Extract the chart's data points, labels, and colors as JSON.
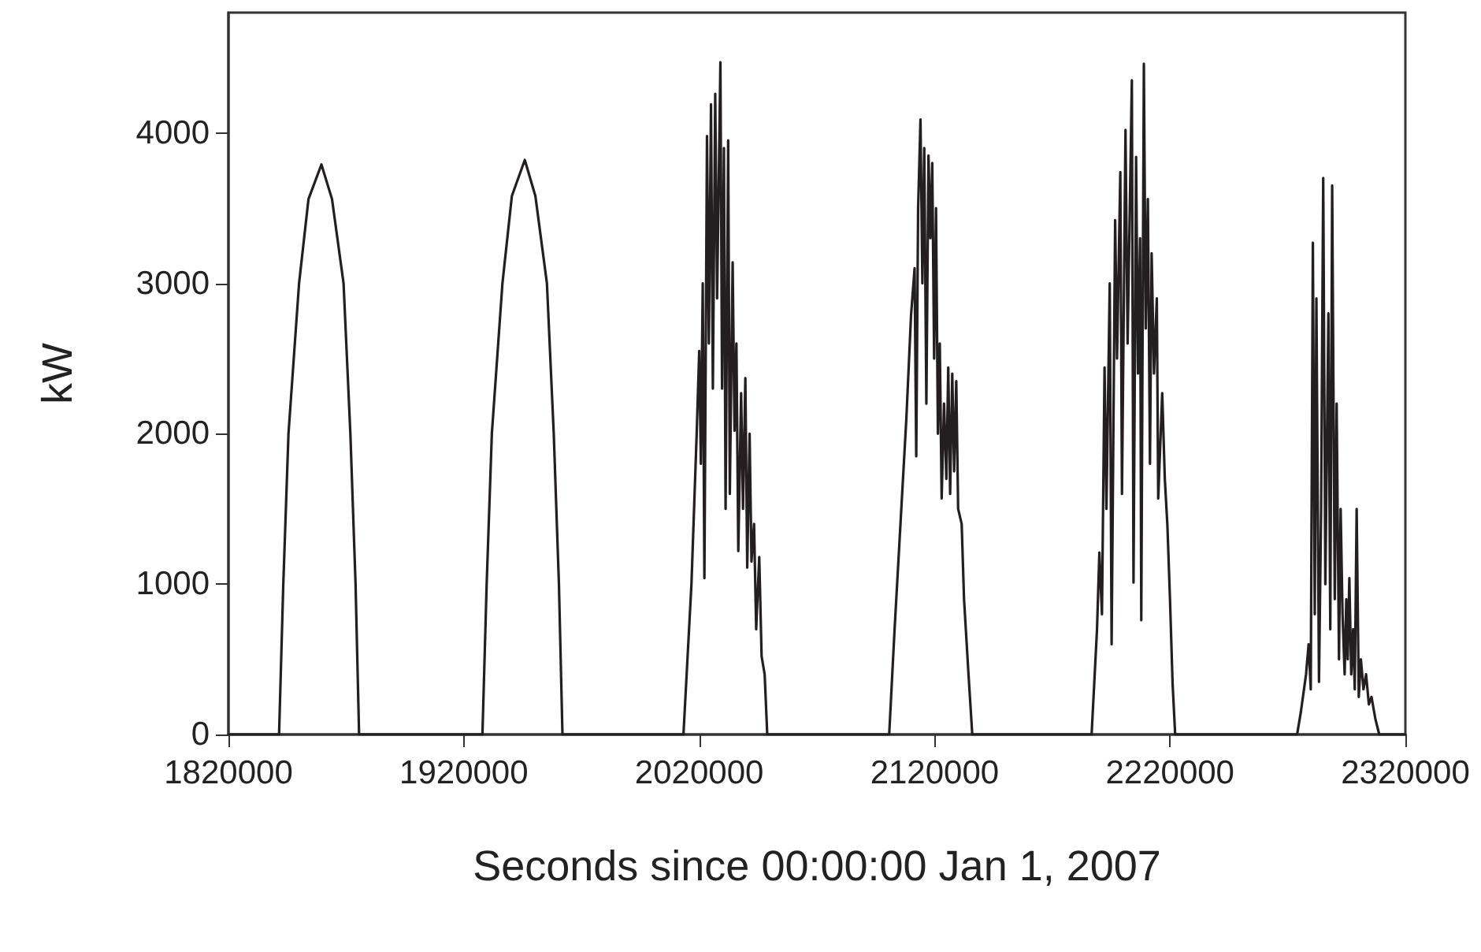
{
  "chart_data": {
    "type": "line",
    "xlabel": "Seconds since 00:00:00 Jan 1, 2007",
    "ylabel": "kW",
    "xlim": [
      1820000,
      2320000
    ],
    "xticks": [
      1820000,
      1920000,
      2020000,
      2120000,
      2220000,
      2320000
    ],
    "ylim": [
      0,
      4800
    ],
    "yticks": [
      0,
      1000,
      2000,
      3000,
      4000
    ],
    "grid": false,
    "marker": "none",
    "line_style": "solid",
    "series": [
      {
        "color": "#231f20",
        "x": [
          1820000,
          1841500,
          1843300,
          1845500,
          1850000,
          1854000,
          1859500,
          1864000,
          1868900,
          1871800,
          1874000,
          1875500,
          1927900,
          1929700,
          1931900,
          1936400,
          1940400,
          1945900,
          1950400,
          1955300,
          1958200,
          1960400,
          1961900,
          2013300,
          2016700,
          2018900,
          2020000,
          2020700,
          2021500,
          2022200,
          2023300,
          2024100,
          2025000,
          2025800,
          2026800,
          2027600,
          2029000,
          2029700,
          2030500,
          2031200,
          2032300,
          2033000,
          2034200,
          2035000,
          2035800,
          2036600,
          2037800,
          2038600,
          2039600,
          2040400,
          2041400,
          2042200,
          2043300,
          2044200,
          2045500,
          2046500,
          2047800,
          2048900,
          2100700,
          2103000,
          2105500,
          2108000,
          2110000,
          2111500,
          2112200,
          2113000,
          2114000,
          2114800,
          2115600,
          2116500,
          2117400,
          2118200,
          2119000,
          2119800,
          2120600,
          2121400,
          2122200,
          2123000,
          2124000,
          2125000,
          2125800,
          2126600,
          2127500,
          2128300,
          2129200,
          2130000,
          2131500,
          2132500,
          2134400,
          2136000,
          2186700,
          2189000,
          2190000,
          2191100,
          2192200,
          2193000,
          2194400,
          2195200,
          2196700,
          2197500,
          2198900,
          2199600,
          2201100,
          2202000,
          2203800,
          2204500,
          2205600,
          2206400,
          2207300,
          2207800,
          2208900,
          2209700,
          2210600,
          2211500,
          2212200,
          2213200,
          2214400,
          2215000,
          2216700,
          2217800,
          2218900,
          2220000,
          2221100,
          2222200,
          2274000,
          2275600,
          2277800,
          2278900,
          2279800,
          2280700,
          2281500,
          2282200,
          2283300,
          2284200,
          2285100,
          2286000,
          2287300,
          2288100,
          2288900,
          2290000,
          2290800,
          2291800,
          2292500,
          2293300,
          2294200,
          2294900,
          2295500,
          2296200,
          2297000,
          2297800,
          2298500,
          2299300,
          2300200,
          2301100,
          2302200,
          2303300,
          2304500,
          2305600,
          2307300,
          2308900,
          2320000
        ],
        "values": [
          0,
          0,
          1000,
          2000,
          3000,
          3560,
          3790,
          3560,
          3000,
          2000,
          1000,
          0,
          0,
          1000,
          2000,
          3000,
          3580,
          3820,
          3580,
          3000,
          2000,
          1000,
          0,
          0,
          1000,
          1990,
          2550,
          1800,
          3000,
          1040,
          3980,
          2600,
          4190,
          2300,
          4260,
          2900,
          4470,
          2300,
          3900,
          1500,
          3950,
          1600,
          3140,
          2020,
          2600,
          1220,
          2270,
          1500,
          2370,
          1110,
          2000,
          1150,
          1400,
          700,
          1180,
          520,
          400,
          0,
          0,
          700,
          1400,
          2100,
          2790,
          3100,
          1850,
          3500,
          4090,
          3000,
          3900,
          2200,
          3850,
          3300,
          3800,
          2500,
          3500,
          2000,
          2600,
          1570,
          2200,
          1700,
          2440,
          1600,
          2400,
          1750,
          2350,
          1500,
          1400,
          900,
          400,
          0,
          0,
          700,
          1210,
          800,
          2440,
          1500,
          3000,
          600,
          3420,
          2500,
          3740,
          1600,
          4020,
          2600,
          4350,
          1010,
          3840,
          2400,
          3300,
          760,
          4460,
          2700,
          3560,
          1800,
          3200,
          2400,
          2900,
          1570,
          2270,
          1700,
          1390,
          900,
          340,
          0,
          0,
          150,
          400,
          600,
          300,
          3270,
          800,
          2900,
          350,
          1500,
          3700,
          1000,
          2800,
          700,
          3650,
          900,
          2200,
          500,
          1500,
          800,
          400,
          900,
          500,
          1040,
          400,
          700,
          300,
          1500,
          250,
          500,
          300,
          400,
          200,
          250,
          100,
          0,
          0
        ]
      }
    ]
  }
}
